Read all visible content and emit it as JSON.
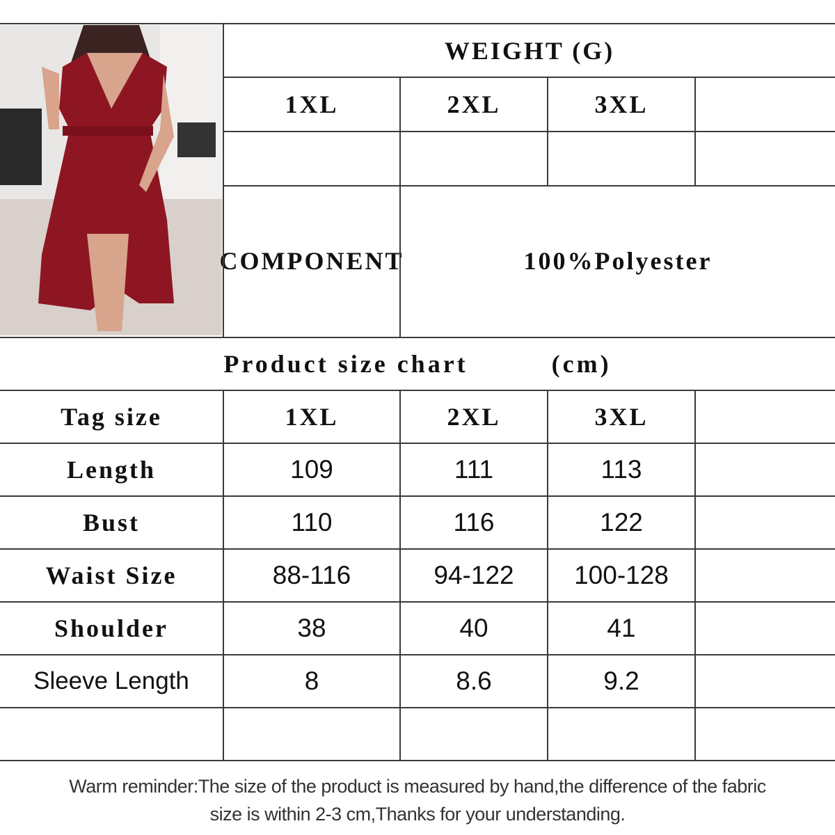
{
  "weight": {
    "title": "WEIGHT (G)",
    "sizes": [
      "1XL",
      "2XL",
      "3XL",
      ""
    ],
    "values": [
      "",
      "",
      "",
      ""
    ]
  },
  "component": {
    "label": "COMPONENT",
    "value": "100%Polyester"
  },
  "size_chart": {
    "title": "Product size chart",
    "unit": "(cm)",
    "rows": [
      {
        "label": "Tag size",
        "values": [
          "1XL",
          "2XL",
          "3XL",
          ""
        ]
      },
      {
        "label": "Length",
        "values": [
          "109",
          "111",
          "113",
          ""
        ]
      },
      {
        "label": "Bust",
        "values": [
          "110",
          "116",
          "122",
          ""
        ]
      },
      {
        "label": "Waist Size",
        "values": [
          "88-116",
          "94-122",
          "100-128",
          ""
        ]
      },
      {
        "label": "Shoulder",
        "values": [
          "38",
          "40",
          "41",
          ""
        ]
      },
      {
        "label": "Sleeve Length",
        "values": [
          "8",
          "8.6",
          "9.2",
          ""
        ]
      },
      {
        "label": "",
        "values": [
          "",
          "",
          "",
          ""
        ]
      }
    ]
  },
  "footer": {
    "line1": "Warm reminder:The size of the product is measured by hand,the difference of the fabric",
    "line2": "size is within 2-3 cm,Thanks for your understanding."
  },
  "colors": {
    "dress": "#8e1522",
    "grid": "#3a3a3a"
  }
}
